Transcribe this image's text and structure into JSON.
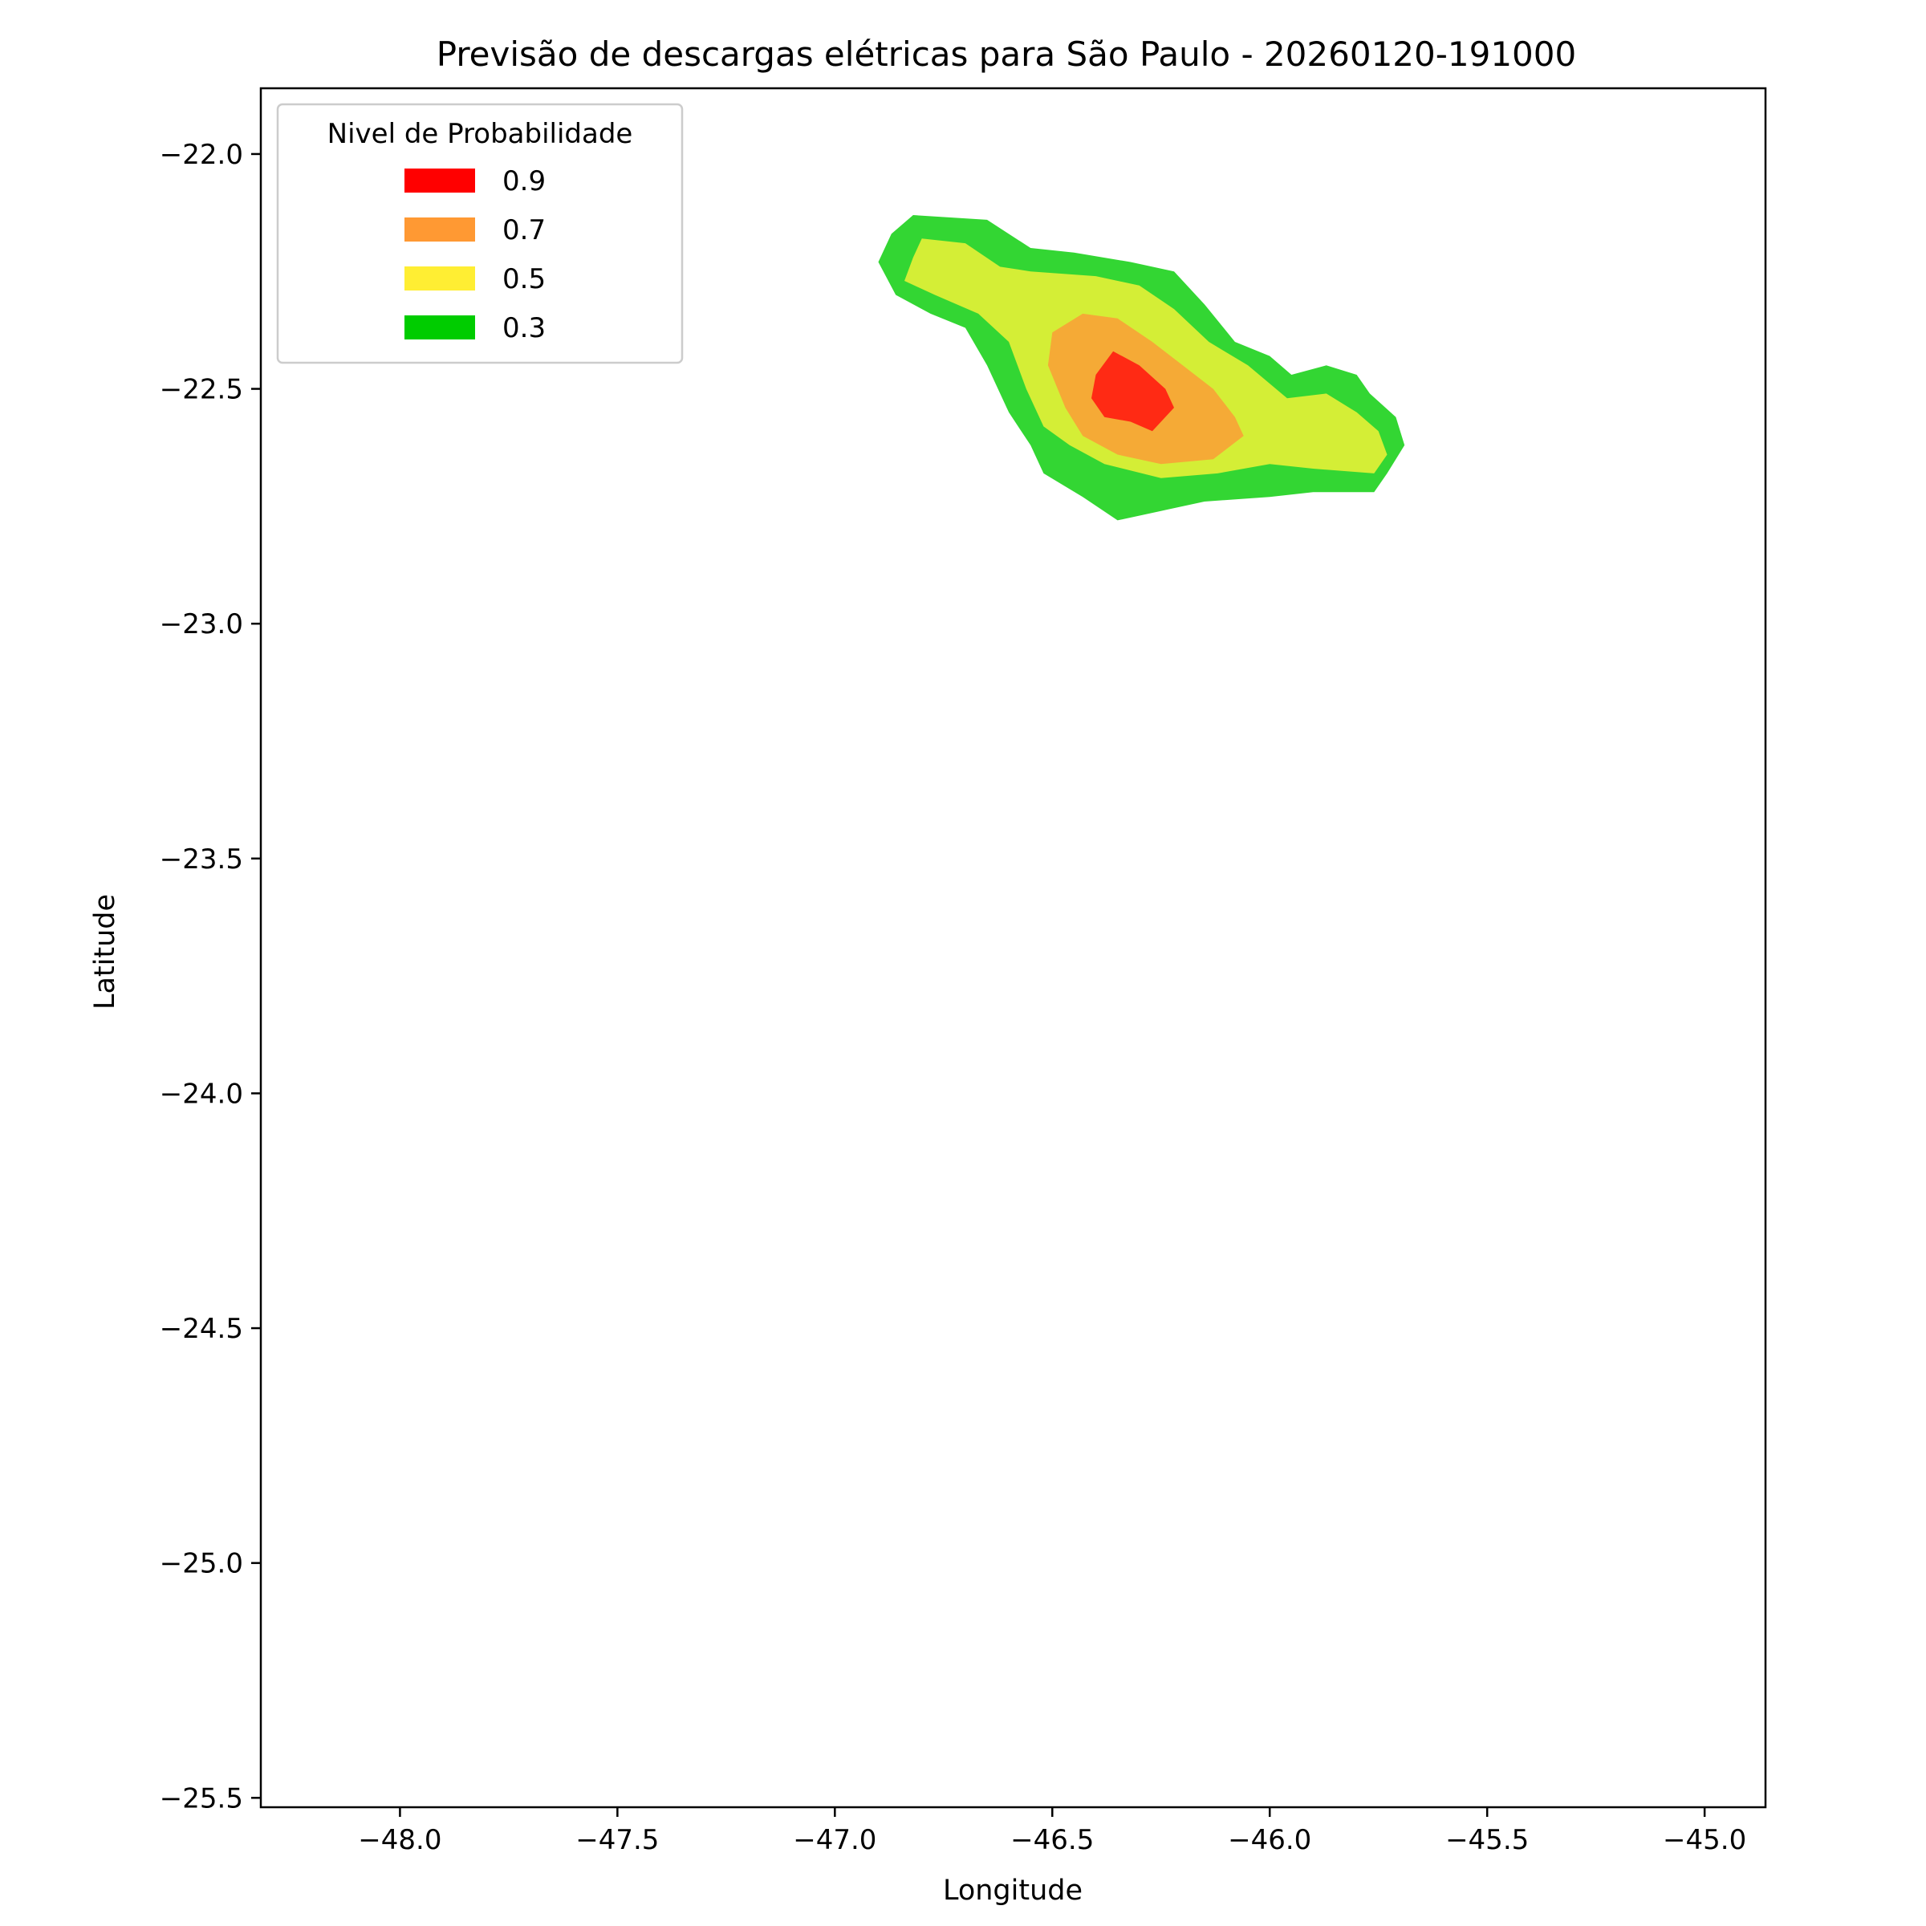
{
  "chart_data": {
    "type": "contour",
    "title": "Previsão de descargas elétricas para São Paulo - 20260120-191000",
    "xlabel": "Longitude",
    "ylabel": "Latitude",
    "xlim": [
      -48.32,
      -44.86
    ],
    "ylim": [
      -25.52,
      -21.86
    ],
    "xticks": [
      -48.0,
      -47.5,
      -47.0,
      -46.5,
      -46.0,
      -45.5,
      -45.0
    ],
    "yticks": [
      -22.0,
      -22.5,
      -23.0,
      -23.5,
      -24.0,
      -24.5,
      -25.0,
      -25.5
    ],
    "xtick_labels": [
      "−48.0",
      "−47.5",
      "−47.0",
      "−46.5",
      "−46.0",
      "−45.5",
      "−45.0"
    ],
    "ytick_labels": [
      "−22.0",
      "−22.5",
      "−23.0",
      "−23.5",
      "−24.0",
      "−24.5",
      "−25.0",
      "−25.5"
    ],
    "grid": false,
    "legend": {
      "title": "Nivel de Probabilidade",
      "placement": "upper-left",
      "entries": [
        {
          "label": "0.9",
          "color": "#ff0000"
        },
        {
          "label": "0.7",
          "color": "#ff9933"
        },
        {
          "label": "0.5",
          "color": "#ffee33"
        },
        {
          "label": "0.3",
          "color": "#00cc00"
        }
      ]
    },
    "levels": [
      {
        "level": "0.3",
        "color": "#33d633",
        "polygon": [
          [
            -46.82,
            -22.13
          ],
          [
            -46.65,
            -22.14
          ],
          [
            -46.55,
            -22.2
          ],
          [
            -46.45,
            -22.21
          ],
          [
            -46.32,
            -22.23
          ],
          [
            -46.22,
            -22.25
          ],
          [
            -46.15,
            -22.32
          ],
          [
            -46.08,
            -22.4
          ],
          [
            -46.0,
            -22.43
          ],
          [
            -45.95,
            -22.47
          ],
          [
            -45.87,
            -22.45
          ],
          [
            -45.8,
            -22.47
          ],
          [
            -45.77,
            -22.51
          ],
          [
            -45.71,
            -22.56
          ],
          [
            -45.69,
            -22.62
          ],
          [
            -45.73,
            -22.68
          ],
          [
            -45.76,
            -22.72
          ],
          [
            -45.9,
            -22.72
          ],
          [
            -46.0,
            -22.73
          ],
          [
            -46.15,
            -22.74
          ],
          [
            -46.25,
            -22.76
          ],
          [
            -46.35,
            -22.78
          ],
          [
            -46.43,
            -22.73
          ],
          [
            -46.52,
            -22.68
          ],
          [
            -46.55,
            -22.62
          ],
          [
            -46.6,
            -22.55
          ],
          [
            -46.65,
            -22.45
          ],
          [
            -46.7,
            -22.37
          ],
          [
            -46.78,
            -22.34
          ],
          [
            -46.86,
            -22.3
          ],
          [
            -46.9,
            -22.23
          ],
          [
            -46.87,
            -22.17
          ]
        ]
      },
      {
        "level": "0.5",
        "color": "#d4ee36",
        "polygon": [
          [
            -46.8,
            -22.18
          ],
          [
            -46.7,
            -22.19
          ],
          [
            -46.62,
            -22.24
          ],
          [
            -46.55,
            -22.25
          ],
          [
            -46.4,
            -22.26
          ],
          [
            -46.3,
            -22.28
          ],
          [
            -46.22,
            -22.33
          ],
          [
            -46.14,
            -22.4
          ],
          [
            -46.05,
            -22.45
          ],
          [
            -45.96,
            -22.52
          ],
          [
            -45.87,
            -22.51
          ],
          [
            -45.8,
            -22.55
          ],
          [
            -45.75,
            -22.59
          ],
          [
            -45.73,
            -22.64
          ],
          [
            -45.76,
            -22.68
          ],
          [
            -45.9,
            -22.67
          ],
          [
            -46.0,
            -22.66
          ],
          [
            -46.12,
            -22.68
          ],
          [
            -46.25,
            -22.69
          ],
          [
            -46.38,
            -22.66
          ],
          [
            -46.46,
            -22.62
          ],
          [
            -46.52,
            -22.58
          ],
          [
            -46.56,
            -22.5
          ],
          [
            -46.6,
            -22.4
          ],
          [
            -46.67,
            -22.34
          ],
          [
            -46.77,
            -22.3
          ],
          [
            -46.84,
            -22.27
          ],
          [
            -46.82,
            -22.22
          ]
        ]
      },
      {
        "level": "0.7",
        "color": "#f5aa36",
        "polygon": [
          [
            -46.5,
            -22.38
          ],
          [
            -46.43,
            -22.34
          ],
          [
            -46.35,
            -22.35
          ],
          [
            -46.27,
            -22.4
          ],
          [
            -46.2,
            -22.45
          ],
          [
            -46.13,
            -22.5
          ],
          [
            -46.08,
            -22.56
          ],
          [
            -46.06,
            -22.6
          ],
          [
            -46.13,
            -22.65
          ],
          [
            -46.25,
            -22.66
          ],
          [
            -46.35,
            -22.64
          ],
          [
            -46.43,
            -22.6
          ],
          [
            -46.47,
            -22.54
          ],
          [
            -46.51,
            -22.45
          ]
        ]
      },
      {
        "level": "0.9",
        "color": "#ff2a14",
        "polygon": [
          [
            -46.36,
            -22.42
          ],
          [
            -46.3,
            -22.45
          ],
          [
            -46.24,
            -22.5
          ],
          [
            -46.22,
            -22.54
          ],
          [
            -46.27,
            -22.59
          ],
          [
            -46.32,
            -22.57
          ],
          [
            -46.38,
            -22.56
          ],
          [
            -46.41,
            -22.52
          ],
          [
            -46.4,
            -22.47
          ]
        ]
      }
    ]
  }
}
